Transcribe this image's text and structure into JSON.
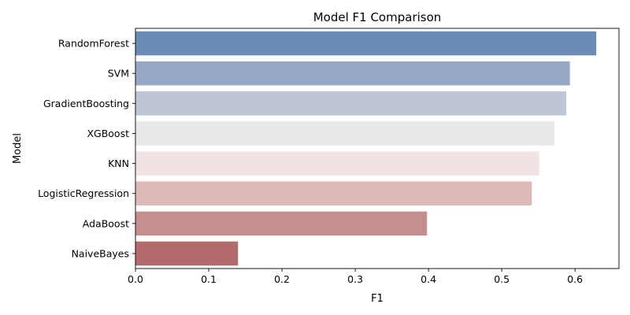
{
  "chart_data": {
    "type": "bar",
    "orientation": "horizontal",
    "title": "Model F1 Comparison",
    "xlabel": "F1",
    "ylabel": "Model",
    "xlim": [
      0,
      0.66
    ],
    "xticks": [
      0.0,
      0.1,
      0.2,
      0.3,
      0.4,
      0.5,
      0.6
    ],
    "xtick_labels": [
      "0.0",
      "0.1",
      "0.2",
      "0.3",
      "0.4",
      "0.5",
      "0.6"
    ],
    "grid": false,
    "legend": "none",
    "categories": [
      "RandomForest",
      "SVM",
      "GradientBoosting",
      "XGBoost",
      "KNN",
      "LogisticRegression",
      "AdaBoost",
      "NaiveBayes"
    ],
    "values": [
      0.629,
      0.593,
      0.588,
      0.572,
      0.551,
      0.541,
      0.398,
      0.14
    ],
    "colors": [
      "#6b8cb4",
      "#97a8c4",
      "#bec5d5",
      "#e9e9ec",
      "#f1e3e4",
      "#dcbab9",
      "#c48f8e",
      "#b36c6b"
    ]
  }
}
